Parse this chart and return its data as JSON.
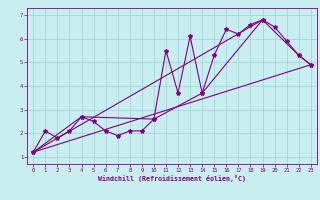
{
  "xlabel": "Windchill (Refroidissement éolien,°C)",
  "background_color": "#c8eef0",
  "line_color": "#800080",
  "grid_color": "#a0d0d8",
  "xlim": [
    -0.5,
    23.5
  ],
  "ylim": [
    0.7,
    7.3
  ],
  "xticks": [
    0,
    1,
    2,
    3,
    4,
    5,
    6,
    7,
    8,
    9,
    10,
    11,
    12,
    13,
    14,
    15,
    16,
    17,
    18,
    19,
    20,
    21,
    22,
    23
  ],
  "yticks": [
    1,
    2,
    3,
    4,
    5,
    6,
    7
  ],
  "series1_x": [
    0,
    1,
    2,
    3,
    4,
    5,
    6,
    7,
    8,
    9,
    10,
    11,
    12,
    13,
    14,
    15,
    16,
    17,
    18,
    19,
    20,
    21,
    22,
    23
  ],
  "series1_y": [
    1.2,
    2.1,
    1.8,
    2.1,
    2.7,
    2.5,
    2.1,
    1.9,
    2.1,
    2.1,
    2.6,
    5.5,
    3.7,
    6.1,
    3.7,
    5.3,
    6.4,
    6.2,
    6.6,
    6.8,
    6.5,
    5.9,
    5.3,
    4.9
  ],
  "series2_x": [
    0,
    4,
    10,
    14,
    19,
    22,
    23
  ],
  "series2_y": [
    1.2,
    2.7,
    2.6,
    3.7,
    6.8,
    5.3,
    4.9
  ],
  "series3_x": [
    0,
    23
  ],
  "series3_y": [
    1.2,
    4.9
  ],
  "series4_x": [
    0,
    19
  ],
  "series4_y": [
    1.2,
    6.8
  ]
}
